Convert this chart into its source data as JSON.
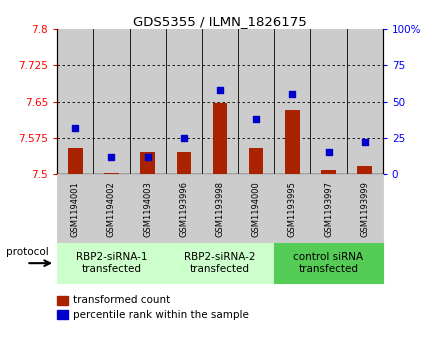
{
  "title": "GDS5355 / ILMN_1826175",
  "samples": [
    "GSM1194001",
    "GSM1194002",
    "GSM1194003",
    "GSM1193996",
    "GSM1193998",
    "GSM1194000",
    "GSM1193995",
    "GSM1193997",
    "GSM1193999"
  ],
  "red_values": [
    7.555,
    7.502,
    7.545,
    7.545,
    7.648,
    7.555,
    7.632,
    7.508,
    7.518
  ],
  "blue_values": [
    32,
    12,
    12,
    25,
    58,
    38,
    55,
    15,
    22
  ],
  "ylim_left": [
    7.5,
    7.8
  ],
  "ylim_right": [
    0,
    100
  ],
  "yticks_left": [
    7.5,
    7.575,
    7.65,
    7.725,
    7.8
  ],
  "yticks_right": [
    0,
    25,
    50,
    75,
    100
  ],
  "groups": [
    {
      "label": "RBP2-siRNA-1\ntransfected",
      "indices": [
        0,
        1,
        2
      ],
      "color": "#ccffcc"
    },
    {
      "label": "RBP2-siRNA-2\ntransfected",
      "indices": [
        3,
        4,
        5
      ],
      "color": "#ccffcc"
    },
    {
      "label": "control siRNA\ntransfected",
      "indices": [
        6,
        7,
        8
      ],
      "color": "#55cc55"
    }
  ],
  "protocol_label": "protocol",
  "legend_red": "transformed count",
  "legend_blue": "percentile rank within the sample",
  "bar_color": "#aa2200",
  "dot_color": "#0000cc",
  "bar_bottom": 7.5,
  "bg_color": "#cccccc",
  "separator_indices": [
    2,
    5
  ]
}
